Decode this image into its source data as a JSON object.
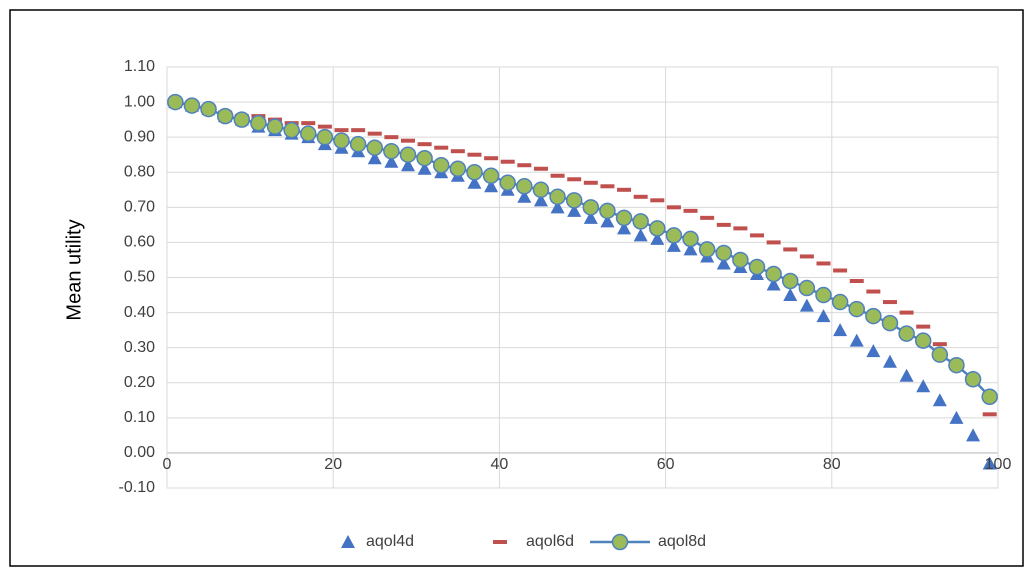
{
  "chart_data": {
    "type": "scatter",
    "y_label": "Mean utility",
    "x": [
      1,
      3,
      5,
      7,
      9,
      11,
      13,
      15,
      17,
      19,
      21,
      23,
      25,
      27,
      29,
      31,
      33,
      35,
      37,
      39,
      41,
      43,
      45,
      47,
      49,
      51,
      53,
      55,
      57,
      59,
      61,
      63,
      65,
      67,
      69,
      71,
      73,
      75,
      77,
      79,
      81,
      83,
      85,
      87,
      89,
      91,
      93,
      95,
      97,
      99
    ],
    "series": [
      {
        "name": "aqol4d",
        "color": "#4472c4",
        "marker": "triangle",
        "line": false,
        "values": [
          1.0,
          0.99,
          0.98,
          0.96,
          0.95,
          0.93,
          0.92,
          0.91,
          0.9,
          0.88,
          0.87,
          0.86,
          0.84,
          0.83,
          0.82,
          0.81,
          0.8,
          0.79,
          0.77,
          0.76,
          0.75,
          0.73,
          0.72,
          0.7,
          0.69,
          0.67,
          0.66,
          0.64,
          0.62,
          0.61,
          0.59,
          0.58,
          0.56,
          0.54,
          0.53,
          0.51,
          0.48,
          0.45,
          0.42,
          0.39,
          0.35,
          0.32,
          0.29,
          0.26,
          0.22,
          0.19,
          0.15,
          0.1,
          0.05,
          -0.03
        ]
      },
      {
        "name": "aqol6d",
        "color": "#c0504d",
        "marker": "dash",
        "line": false,
        "values": [
          1.0,
          0.99,
          0.98,
          0.97,
          0.96,
          0.96,
          0.95,
          0.94,
          0.94,
          0.93,
          0.92,
          0.92,
          0.91,
          0.9,
          0.89,
          0.88,
          0.87,
          0.86,
          0.85,
          0.84,
          0.83,
          0.82,
          0.81,
          0.79,
          0.78,
          0.77,
          0.76,
          0.75,
          0.73,
          0.72,
          0.7,
          0.69,
          0.67,
          0.65,
          0.64,
          0.62,
          0.6,
          0.58,
          0.56,
          0.54,
          0.52,
          0.49,
          0.46,
          0.43,
          0.4,
          0.36,
          0.31,
          0.26,
          0.2,
          0.11
        ]
      },
      {
        "name": "aqol8d",
        "color": "#9bbb59",
        "line_color": "#4f81bd",
        "marker": "circle",
        "line": true,
        "values": [
          1.0,
          0.99,
          0.98,
          0.96,
          0.95,
          0.94,
          0.93,
          0.92,
          0.91,
          0.9,
          0.89,
          0.88,
          0.87,
          0.86,
          0.85,
          0.84,
          0.82,
          0.81,
          0.8,
          0.79,
          0.77,
          0.76,
          0.75,
          0.73,
          0.72,
          0.7,
          0.69,
          0.67,
          0.66,
          0.64,
          0.62,
          0.61,
          0.58,
          0.57,
          0.55,
          0.53,
          0.51,
          0.49,
          0.47,
          0.45,
          0.43,
          0.41,
          0.39,
          0.37,
          0.34,
          0.32,
          0.28,
          0.25,
          0.21,
          0.16
        ]
      }
    ],
    "xlim": [
      0,
      100
    ],
    "xticks": [
      0,
      20,
      40,
      60,
      80,
      100
    ],
    "ylim": [
      -0.1,
      1.1
    ],
    "yticks": [
      {
        "value": -0.1,
        "label": "-0.10"
      },
      {
        "value": 0,
        "label": "0.00"
      },
      {
        "value": 0.1,
        "label": "0.10"
      },
      {
        "value": 0.2,
        "label": "0.20"
      },
      {
        "value": 0.3,
        "label": "0.30"
      },
      {
        "value": 0.4,
        "label": "0.40"
      },
      {
        "value": 0.5,
        "label": "0.50"
      },
      {
        "value": 0.6,
        "label": "0.60"
      },
      {
        "value": 0.7,
        "label": "0.70"
      },
      {
        "value": 0.8,
        "label": "0.80"
      },
      {
        "value": 0.9,
        "label": "0.90"
      },
      {
        "value": 1.0,
        "label": "1.00"
      },
      {
        "value": 1.1,
        "label": "1.10"
      }
    ],
    "grid": true,
    "legend": "bottom"
  }
}
